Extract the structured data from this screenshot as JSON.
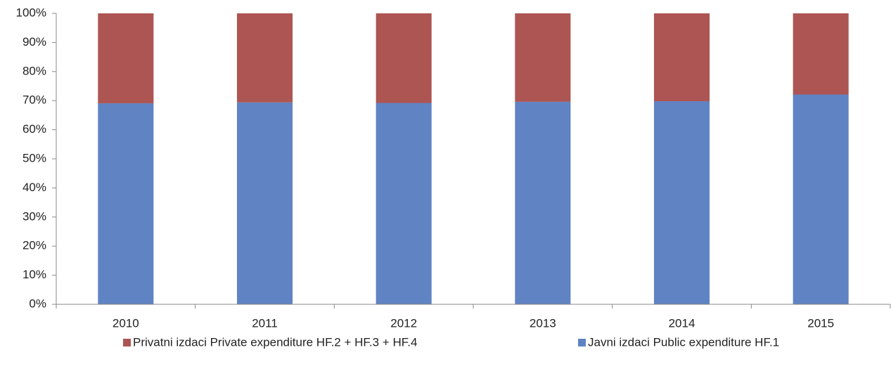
{
  "chart_data": {
    "type": "bar",
    "stacked": true,
    "categories": [
      "2010",
      "2011",
      "2012",
      "2013",
      "2014",
      "2015"
    ],
    "series": [
      {
        "name": "Privatni izdaci Private expenditure HF.2 + HF.3 + HF.4",
        "color": "#ad5552",
        "values": [
          30.9,
          30.6,
          30.8,
          30.4,
          30.2,
          27.9
        ]
      },
      {
        "name": "Javni izdaci Public expenditure HF.1",
        "color": "#6083c3",
        "values": [
          69.1,
          69.4,
          69.2,
          69.6,
          69.8,
          72.1
        ]
      }
    ],
    "ylim": [
      0,
      100
    ],
    "yticks": [
      {
        "value": 0,
        "label": "0%"
      },
      {
        "value": 10,
        "label": "10%"
      },
      {
        "value": 20,
        "label": "20%"
      },
      {
        "value": 30,
        "label": "30%"
      },
      {
        "value": 40,
        "label": "40%"
      },
      {
        "value": 50,
        "label": "50%"
      },
      {
        "value": 60,
        "label": "60%"
      },
      {
        "value": 70,
        "label": "70%"
      },
      {
        "value": 80,
        "label": "80%"
      },
      {
        "value": 90,
        "label": "90%"
      },
      {
        "value": 100,
        "label": "100%"
      }
    ],
    "grid": false,
    "legend": "bottom"
  }
}
